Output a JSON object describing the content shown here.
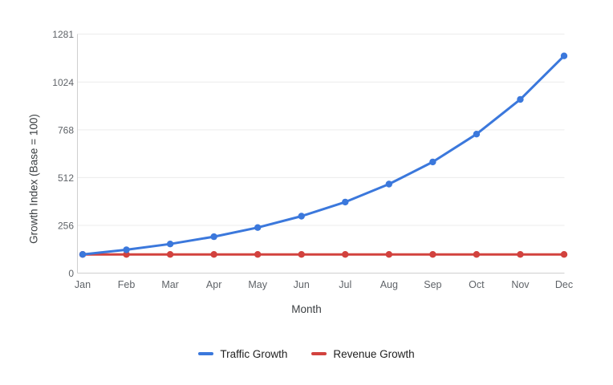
{
  "chart_data": {
    "type": "line",
    "title": "",
    "categories": [
      "Jan",
      "Feb",
      "Mar",
      "Apr",
      "May",
      "Jun",
      "Jul",
      "Aug",
      "Sep",
      "Oct",
      "Nov",
      "Dec"
    ],
    "xlabel": "Month",
    "ylabel": "Growth Index (Base = 100)",
    "ylim": [
      0,
      1281
    ],
    "yticks": [
      0,
      256,
      512,
      768,
      1024,
      1281
    ],
    "grid": true,
    "legend_position": "bottom",
    "series": [
      {
        "name": "Traffic Growth",
        "color": "#3b78dc",
        "marker": "circle",
        "values": [
          100,
          125,
          156,
          195,
          244,
          305,
          381,
          477,
          596,
          745,
          931,
          1164
        ]
      },
      {
        "name": "Revenue Growth",
        "color": "#d2423e",
        "marker": "circle",
        "values": [
          100,
          100,
          100,
          100,
          100,
          100,
          100,
          100,
          100,
          100,
          100,
          100
        ]
      }
    ],
    "style": {
      "background": "#ffffff",
      "grid_color": "#ececec",
      "axis_color": "#cfcfcf",
      "tick_text_color": "#5f6368",
      "axis_title_color": "#3c4043",
      "legend_text_color": "#212121"
    }
  }
}
